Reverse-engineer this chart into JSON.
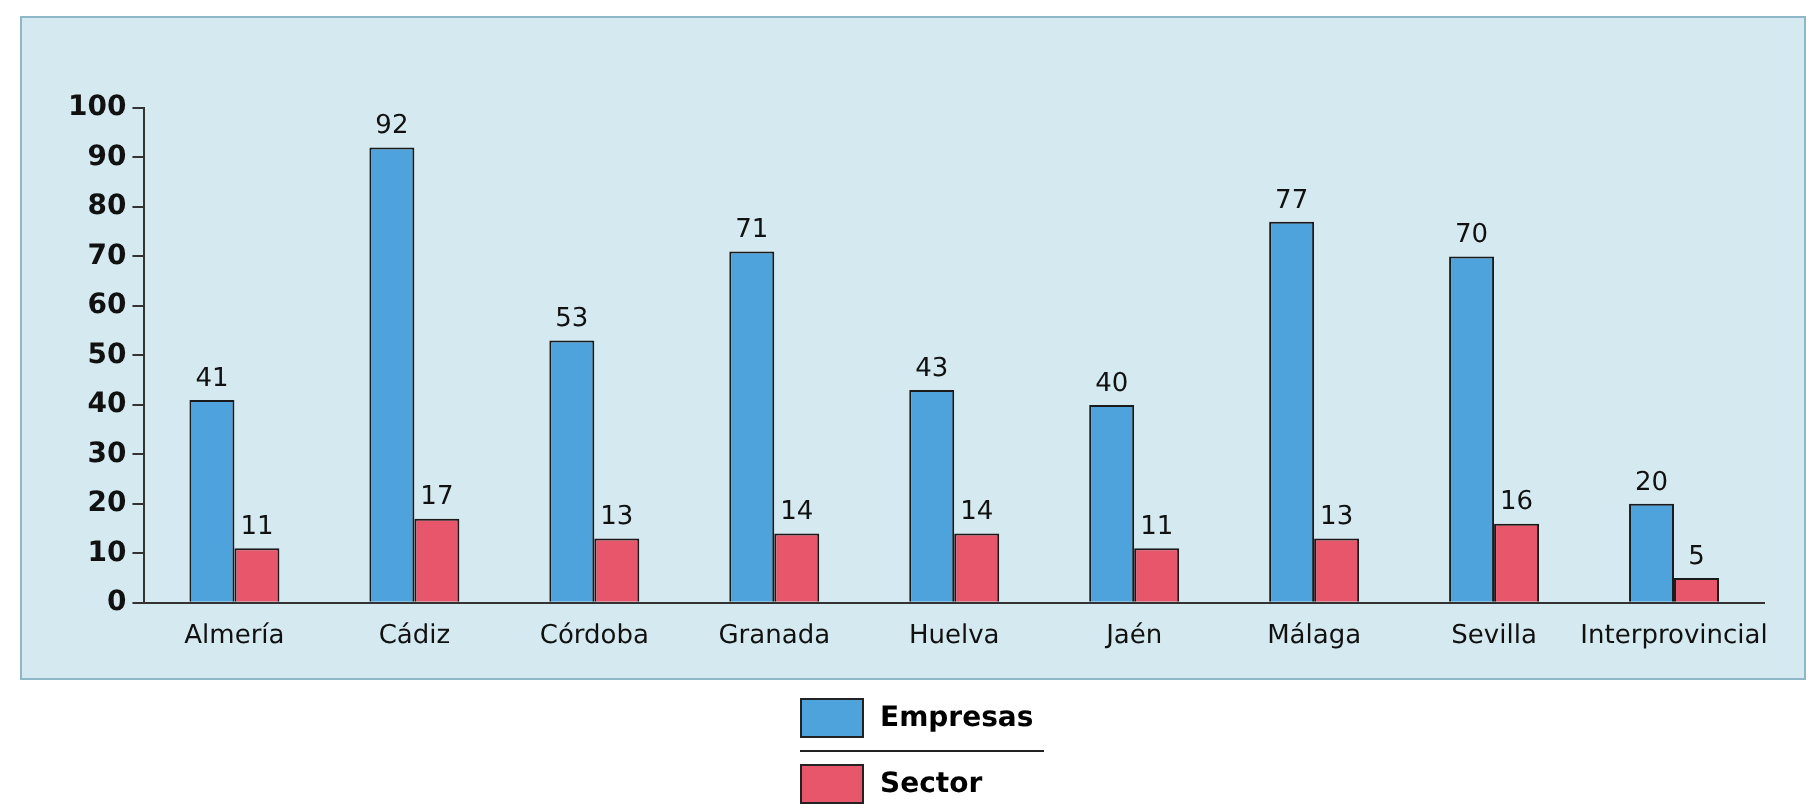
{
  "chart_data": {
    "type": "bar",
    "categories": [
      "Almería",
      "Cádiz",
      "Córdoba",
      "Granada",
      "Huelva",
      "Jaén",
      "Málaga",
      "Sevilla",
      "Interprovincial"
    ],
    "series": [
      {
        "name": "Empresas",
        "color": "#4ea3dd",
        "values": [
          41,
          92,
          53,
          71,
          43,
          40,
          77,
          70,
          20
        ]
      },
      {
        "name": "Sector",
        "color": "#e8566b",
        "values": [
          11,
          17,
          13,
          14,
          14,
          11,
          13,
          16,
          5
        ]
      }
    ],
    "ylim": [
      0,
      100
    ],
    "yticks": [
      0,
      10,
      20,
      30,
      40,
      50,
      60,
      70,
      80,
      90,
      100
    ],
    "grid": false,
    "legend": "bottom",
    "data_labels": true
  }
}
